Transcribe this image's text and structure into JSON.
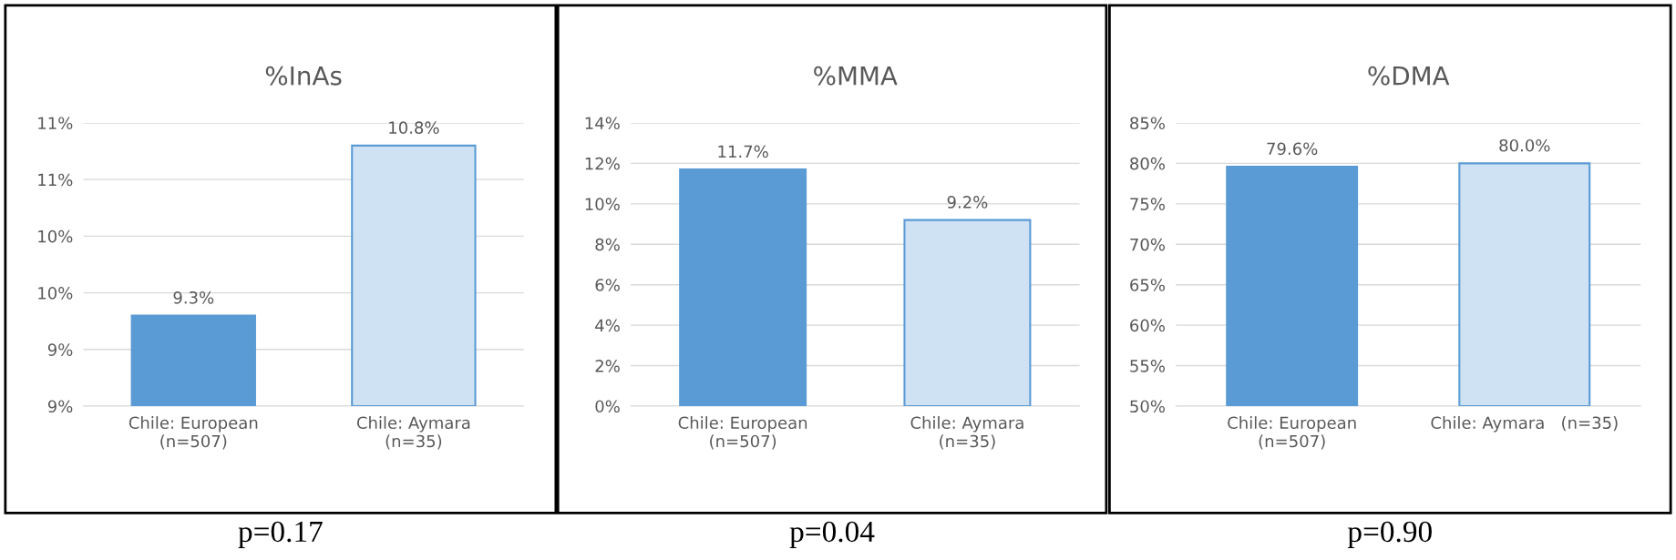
{
  "chart_data": [
    {
      "type": "bar",
      "title": "%InAs",
      "categories": [
        "Chile: European\n(n=507)",
        "Chile: Aymara\n(n=35)"
      ],
      "values": [
        9.3,
        10.8
      ],
      "colors": [
        "#5b9bd5",
        "#cfe2f3"
      ],
      "ylim": [
        8.5,
        11.0
      ],
      "yticks": [
        {
          "value": 8.5,
          "label": "9%"
        },
        {
          "value": 9.0,
          "label": "9%"
        },
        {
          "value": 9.5,
          "label": "10%"
        },
        {
          "value": 10.0,
          "label": "10%"
        },
        {
          "value": 10.5,
          "label": "11%"
        },
        {
          "value": 11.0,
          "label": "11%"
        }
      ],
      "value_labels": [
        "9.3%",
        "10.8%"
      ],
      "grid": "y",
      "annotations": [
        "p=0.17"
      ]
    },
    {
      "type": "bar",
      "title": "%MMA",
      "categories": [
        "Chile: European\n(n=507)",
        "Chile: Aymara\n(n=35)"
      ],
      "values": [
        11.7,
        9.2
      ],
      "colors": [
        "#5b9bd5",
        "#cfe2f3"
      ],
      "ylim": [
        0,
        14
      ],
      "yticks": [
        {
          "value": 0,
          "label": "0%"
        },
        {
          "value": 2,
          "label": "2%"
        },
        {
          "value": 4,
          "label": "4%"
        },
        {
          "value": 6,
          "label": "6%"
        },
        {
          "value": 8,
          "label": "8%"
        },
        {
          "value": 10,
          "label": "10%"
        },
        {
          "value": 12,
          "label": "12%"
        },
        {
          "value": 14,
          "label": "14%"
        }
      ],
      "value_labels": [
        "11.7%",
        "9.2%"
      ],
      "grid": "y",
      "annotations": [
        "p=0.04"
      ]
    },
    {
      "type": "bar",
      "title": "%DMA",
      "categories": [
        "Chile: European\n(n=507)",
        "Chile: Aymara   (n=35)"
      ],
      "values": [
        79.6,
        80.0
      ],
      "colors": [
        "#5b9bd5",
        "#cfe2f3"
      ],
      "ylim": [
        50,
        85
      ],
      "yticks": [
        {
          "value": 50,
          "label": "50%"
        },
        {
          "value": 55,
          "label": "55%"
        },
        {
          "value": 60,
          "label": "60%"
        },
        {
          "value": 65,
          "label": "65%"
        },
        {
          "value": 70,
          "label": "70%"
        },
        {
          "value": 75,
          "label": "75%"
        },
        {
          "value": 80,
          "label": "80%"
        },
        {
          "value": 85,
          "label": "85%"
        }
      ],
      "value_labels": [
        "79.6%",
        "80.0%"
      ],
      "grid": "y",
      "annotations": [
        "p=0.90"
      ]
    }
  ]
}
